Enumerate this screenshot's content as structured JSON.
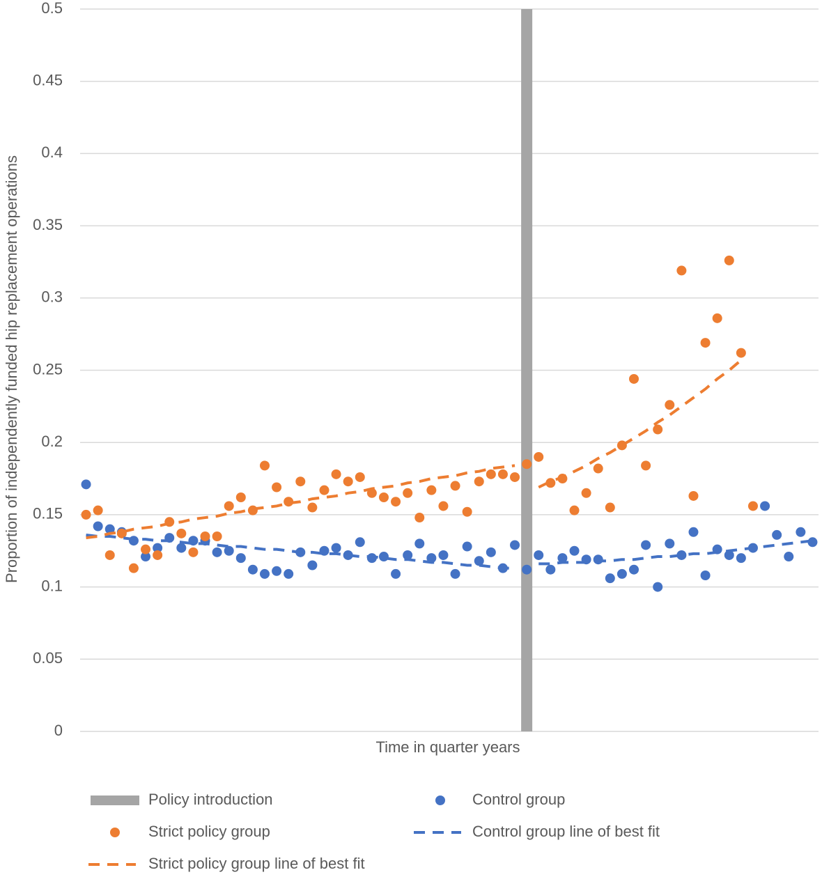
{
  "chart_data": {
    "type": "scatter",
    "y_axis_label": "Proportion of independently funded  hip replacement operations",
    "x_axis_label": "Time in quarter years",
    "categories": [
      null,
      null,
      null,
      null,
      null,
      null,
      null,
      null,
      null,
      null,
      null,
      null,
      null,
      null,
      null,
      null,
      null,
      null,
      null,
      null,
      null,
      null,
      null,
      null,
      null,
      null,
      null,
      null,
      null,
      null,
      null,
      null,
      null,
      null,
      null,
      null,
      null,
      null,
      null,
      null,
      null,
      null,
      null,
      null,
      null,
      null,
      null,
      null,
      null,
      null,
      null,
      null,
      null,
      null,
      null,
      null,
      null,
      null,
      null,
      null,
      null,
      null
    ],
    "ylim": [
      0,
      0.5
    ],
    "yticks": [
      0,
      0.05,
      0.1,
      0.15,
      0.2,
      0.25,
      0.3,
      0.35,
      0.4,
      0.45,
      0.5
    ],
    "grid": true,
    "legend": "bottom",
    "series": [
      {
        "name": "Policy introduction",
        "type": "bar",
        "color": "#a5a5a5",
        "values": [
          null,
          null,
          null,
          null,
          null,
          null,
          null,
          null,
          null,
          null,
          null,
          null,
          null,
          null,
          null,
          null,
          null,
          null,
          null,
          null,
          null,
          null,
          null,
          null,
          null,
          null,
          null,
          null,
          null,
          null,
          null,
          null,
          null,
          null,
          null,
          null,
          null,
          0.5,
          null,
          null,
          null,
          null,
          null,
          null,
          null,
          null,
          null,
          null,
          null,
          null,
          null,
          null,
          null,
          null,
          null,
          null,
          null,
          null,
          null,
          null,
          null,
          null
        ]
      },
      {
        "name": "Control group",
        "type": "scatter",
        "color": "#4472c4",
        "values": [
          0.171,
          0.142,
          0.14,
          0.138,
          0.132,
          0.121,
          0.127,
          0.134,
          0.127,
          0.132,
          0.132,
          0.124,
          0.125,
          0.12,
          0.112,
          0.109,
          0.111,
          0.109,
          0.124,
          0.115,
          0.125,
          0.127,
          0.122,
          0.131,
          0.12,
          0.121,
          0.109,
          0.122,
          0.13,
          0.12,
          0.122,
          0.109,
          0.128,
          0.118,
          0.124,
          0.113,
          0.129,
          0.112,
          0.122,
          0.112,
          0.12,
          0.125,
          0.119,
          0.119,
          0.106,
          0.109,
          0.112,
          0.129,
          0.1,
          0.13,
          0.122,
          0.138,
          0.108,
          0.126,
          0.122,
          0.12,
          0.127,
          0.156,
          0.136,
          0.121,
          0.138,
          0.131
        ]
      },
      {
        "name": "Strict policy group",
        "type": "scatter",
        "color": "#ed7d31",
        "values": [
          0.15,
          0.153,
          0.122,
          0.137,
          0.113,
          0.126,
          0.122,
          0.145,
          0.137,
          0.124,
          0.135,
          0.135,
          0.156,
          0.162,
          0.153,
          0.184,
          0.169,
          0.159,
          0.173,
          0.155,
          0.167,
          0.178,
          0.173,
          0.176,
          0.165,
          0.162,
          0.159,
          0.165,
          0.148,
          0.167,
          0.156,
          0.17,
          0.152,
          0.173,
          0.178,
          0.178,
          0.176,
          0.185,
          0.19,
          0.172,
          0.175,
          0.153,
          0.165,
          0.182,
          0.155,
          0.198,
          0.244,
          0.184,
          0.209,
          0.226,
          0.319,
          0.163,
          0.269,
          0.286,
          0.326,
          0.262,
          0.156,
          null,
          null,
          null,
          null,
          null
        ]
      },
      {
        "name": "Control group line of best fit",
        "type": "line",
        "color": "#4472c4",
        "values": [
          0.136,
          0.135,
          0.135,
          0.134,
          0.133,
          0.133,
          0.132,
          0.132,
          0.131,
          0.13,
          0.13,
          0.129,
          0.128,
          0.128,
          0.127,
          0.126,
          0.126,
          0.125,
          0.124,
          0.124,
          0.123,
          0.123,
          0.122,
          0.121,
          0.121,
          0.12,
          0.119,
          0.119,
          0.118,
          0.117,
          0.117,
          0.116,
          0.115,
          0.115,
          0.114,
          0.113,
          0.113,
          null,
          0.116,
          0.116,
          0.117,
          0.117,
          0.117,
          0.118,
          0.118,
          0.119,
          0.119,
          0.12,
          0.121,
          0.121,
          0.122,
          0.123,
          0.123,
          0.124,
          0.125,
          0.126,
          0.127,
          0.128,
          0.129,
          0.13,
          0.131,
          0.132
        ]
      },
      {
        "name": "Strict policy group line of best fit",
        "type": "line",
        "color": "#ed7d31",
        "values": [
          0.134,
          0.135,
          0.137,
          0.138,
          0.14,
          0.141,
          0.142,
          0.144,
          0.145,
          0.147,
          0.148,
          0.149,
          0.151,
          0.152,
          0.154,
          0.155,
          0.156,
          0.158,
          0.159,
          0.161,
          0.162,
          0.163,
          0.165,
          0.166,
          0.168,
          0.169,
          0.17,
          0.172,
          0.173,
          0.175,
          0.176,
          0.177,
          0.179,
          0.18,
          0.182,
          0.183,
          0.184,
          null,
          0.169,
          0.173,
          0.176,
          0.18,
          0.184,
          0.189,
          0.193,
          0.198,
          0.203,
          0.208,
          0.214,
          0.219,
          0.225,
          0.231,
          0.237,
          0.244,
          0.25,
          0.257,
          null,
          null,
          null,
          null,
          null,
          null
        ]
      }
    ]
  }
}
